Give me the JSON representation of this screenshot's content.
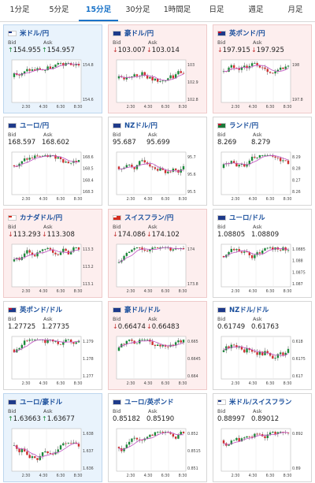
{
  "tabs": [
    "1分足",
    "5分足",
    "15分足",
    "30分足",
    "1時間足",
    "日足",
    "週足",
    "月足"
  ],
  "active_tab": 2,
  "cards": [
    {
      "name": "米ドル/円",
      "state": "up",
      "flag": [
        "#ffffff",
        "#1e3a8a"
      ],
      "bid_dir": "up",
      "ask_dir": "up",
      "bid": "154.955",
      "ask": "154.957",
      "y_ticks": [
        "154.8",
        "154.6"
      ],
      "x_ticks": [
        "2:30",
        "4:30",
        "6:30",
        "8:30"
      ]
    },
    {
      "name": "豪ドル/円",
      "state": "down",
      "flag": [
        "#1e3a8a",
        "#1e3a8a"
      ],
      "bid_dir": "down",
      "ask_dir": "down",
      "bid": "103.007",
      "ask": "103.014",
      "y_ticks": [
        "103",
        "102.9",
        "102.8"
      ],
      "x_ticks": [
        "2:30",
        "4:30",
        "6:30",
        "8:30"
      ]
    },
    {
      "name": "英ポンド/円",
      "state": "down",
      "flag": [
        "#1e3a8a",
        "#c8102e"
      ],
      "bid_dir": "down",
      "ask_dir": "down",
      "bid": "197.915",
      "ask": "197.925",
      "y_ticks": [
        "198",
        "197.8"
      ],
      "x_ticks": [
        "2:30",
        "4:30",
        "6:30",
        "8:30"
      ]
    },
    {
      "name": "ユーロ/円",
      "state": "none",
      "flag": [
        "#1e3a8a",
        "#1e3a8a"
      ],
      "bid_dir": "",
      "ask_dir": "",
      "bid": "168.597",
      "ask": "168.602",
      "y_ticks": [
        "168.6",
        "168.5",
        "168.4",
        "168.3"
      ],
      "x_ticks": [
        "2:30",
        "4:30",
        "6:30",
        "8:30"
      ]
    },
    {
      "name": "NZドル/円",
      "state": "none",
      "flag": [
        "#1e3a8a",
        "#1e3a8a"
      ],
      "bid_dir": "",
      "ask_dir": "",
      "bid": "95.687",
      "ask": "95.699",
      "y_ticks": [
        "95.7",
        "95.6",
        "95.5"
      ],
      "x_ticks": [
        "2:30",
        "4:30",
        "6:30",
        "8:30"
      ]
    },
    {
      "name": "ランド/円",
      "state": "none",
      "flag": [
        "#1b7a3a",
        "#c8102e"
      ],
      "bid_dir": "",
      "ask_dir": "",
      "bid": "8.269",
      "ask": "8.279",
      "y_ticks": [
        "8.29",
        "8.28",
        "8.27",
        "8.26"
      ],
      "x_ticks": [
        "2:30",
        "4:30",
        "6:30",
        "8:30"
      ]
    },
    {
      "name": "カナダドル/円",
      "state": "down",
      "flag": [
        "#ffffff",
        "#d52b1e"
      ],
      "bid_dir": "down",
      "ask_dir": "down",
      "bid": "113.293",
      "ask": "113.308",
      "y_ticks": [
        "113.3",
        "113.2",
        "113.1"
      ],
      "x_ticks": [
        "2:30",
        "4:30",
        "6:30",
        "8:30"
      ]
    },
    {
      "name": "スイスフラン/円",
      "state": "down",
      "flag": [
        "#d52b1e",
        "#ffffff"
      ],
      "bid_dir": "down",
      "ask_dir": "down",
      "bid": "174.086",
      "ask": "174.102",
      "y_ticks": [
        "174",
        "173.8"
      ],
      "x_ticks": [
        "2:30",
        "4:30",
        "6:30",
        "8:30"
      ]
    },
    {
      "name": "ユーロ/ドル",
      "state": "none",
      "flag": [
        "#1e3a8a",
        "#1e3a8a"
      ],
      "bid_dir": "",
      "ask_dir": "",
      "bid": "1.08805",
      "ask": "1.08809",
      "y_ticks": [
        "1.0885",
        "1.088",
        "1.0875",
        "1.087"
      ],
      "x_ticks": [
        "2:30",
        "4:30",
        "6:30",
        "8:30"
      ]
    },
    {
      "name": "英ポンド/ドル",
      "state": "none",
      "flag": [
        "#1e3a8a",
        "#c8102e"
      ],
      "bid_dir": "",
      "ask_dir": "",
      "bid": "1.27725",
      "ask": "1.27735",
      "y_ticks": [
        "1.279",
        "1.278",
        "1.277"
      ],
      "x_ticks": [
        "2:30",
        "4:30",
        "6:30",
        "8:30"
      ]
    },
    {
      "name": "豪ドル/ドル",
      "state": "down",
      "flag": [
        "#1e3a8a",
        "#1e3a8a"
      ],
      "bid_dir": "down",
      "ask_dir": "down",
      "bid": "0.66474",
      "ask": "0.66483",
      "y_ticks": [
        "0.665",
        "0.6645",
        "0.664"
      ],
      "x_ticks": [
        "2:30",
        "4:30",
        "6:30",
        "8:30"
      ]
    },
    {
      "name": "NZドル/ドル",
      "state": "none",
      "flag": [
        "#1e3a8a",
        "#1e3a8a"
      ],
      "bid_dir": "",
      "ask_dir": "",
      "bid": "0.61749",
      "ask": "0.61763",
      "y_ticks": [
        "0.618",
        "0.6175",
        "0.617"
      ],
      "x_ticks": [
        "2:30",
        "4:30",
        "6:30",
        "8:30"
      ]
    },
    {
      "name": "ユーロ/豪ドル",
      "state": "up",
      "flag": [
        "#1e3a8a",
        "#1e3a8a"
      ],
      "bid_dir": "up",
      "ask_dir": "up",
      "bid": "1.63663",
      "ask": "1.63677",
      "y_ticks": [
        "1.638",
        "1.637",
        "1.636"
      ],
      "x_ticks": [
        "2:30",
        "4:30",
        "6:30",
        "8:30"
      ]
    },
    {
      "name": "ユーロ/英ポンド",
      "state": "none",
      "flag": [
        "#1e3a8a",
        "#1e3a8a"
      ],
      "bid_dir": "",
      "ask_dir": "",
      "bid": "0.85182",
      "ask": "0.85190",
      "y_ticks": [
        "0.852",
        "0.8515",
        "0.851"
      ],
      "x_ticks": [
        "2:30",
        "4:30",
        "6:30",
        "8:30"
      ]
    },
    {
      "name": "米ドル/スイスフラン",
      "state": "none",
      "flag": [
        "#ffffff",
        "#1e3a8a"
      ],
      "bid_dir": "",
      "ask_dir": "",
      "bid": "0.88997",
      "ask": "0.89012",
      "y_ticks": [
        "0.892",
        "0.89"
      ],
      "x_ticks": [
        "2:30",
        "4:30",
        "6:30",
        "8:30"
      ]
    }
  ],
  "labels": {
    "bid": "Bid",
    "ask": "Ask"
  },
  "colors": {
    "candle_up": "#1b8a3a",
    "candle_down": "#d03030",
    "ma": "#c050c0",
    "accent": "#1a73c8"
  }
}
